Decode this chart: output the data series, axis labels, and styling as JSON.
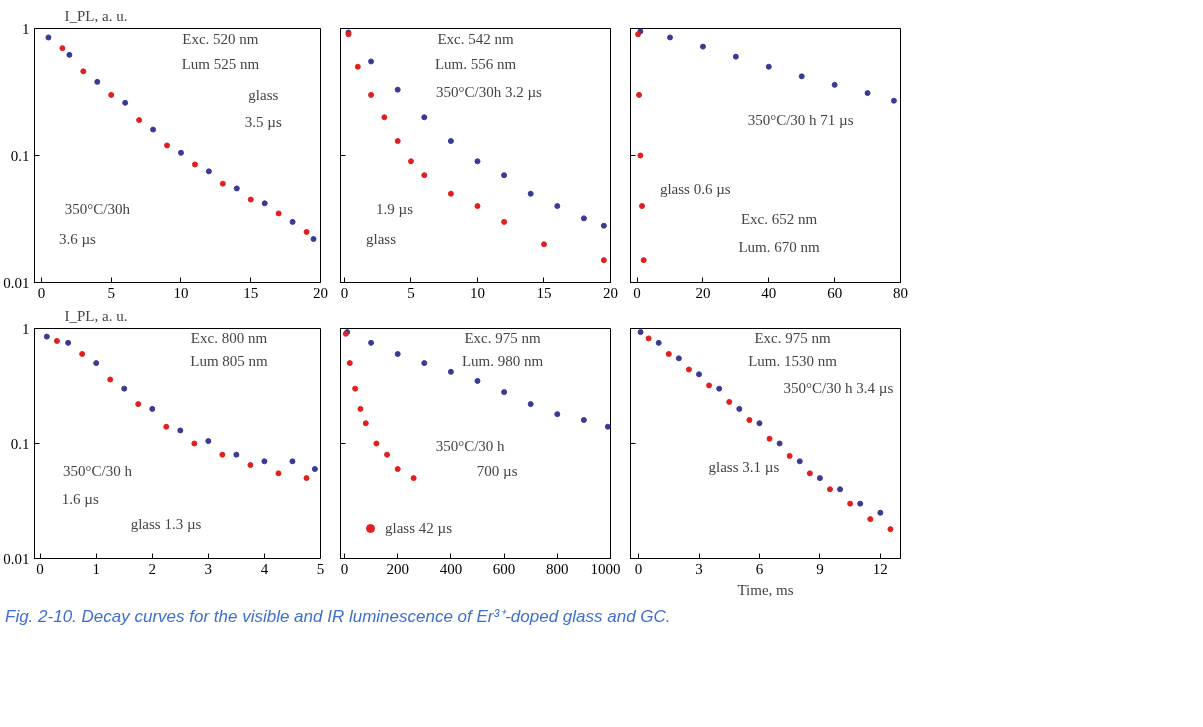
{
  "chart_data": [
    {
      "type": "scatter",
      "marker": "circle",
      "log": "y",
      "ylabel": "I_PL, a. u.",
      "xlim": [
        -0.5,
        20
      ],
      "xticks": [
        0,
        5,
        10,
        15,
        20
      ],
      "ylim": [
        0.01,
        1
      ],
      "yticks": [
        {
          "value": 0.01,
          "label": "0.01"
        },
        {
          "value": 0.1,
          "label": "0.1"
        },
        {
          "value": 1,
          "label": "1"
        }
      ],
      "series": [
        {
          "color": "#3a3a96",
          "x": [
            0.5,
            2,
            4,
            6,
            8,
            10,
            12,
            14,
            16,
            18,
            19.5
          ],
          "values": [
            0.85,
            0.62,
            0.38,
            0.26,
            0.16,
            0.105,
            0.075,
            0.055,
            0.042,
            0.03,
            0.022
          ]
        },
        {
          "color": "#e02020",
          "x": [
            1.5,
            3,
            5,
            7,
            9,
            11,
            13,
            15,
            17,
            19
          ],
          "values": [
            0.7,
            0.46,
            0.3,
            0.19,
            0.12,
            0.085,
            0.06,
            0.045,
            0.035,
            0.025
          ]
        }
      ],
      "annotations": [
        "Exc. 520 nm",
        "Lum 525 nm",
        "glass",
        "3.5 µs",
        "350°C/30h",
        "3.6 µs"
      ]
    },
    {
      "type": "scatter",
      "marker": "circle",
      "log": "y",
      "tick_labels": "x",
      "xlim": [
        -0.3,
        20
      ],
      "xticks": [
        0,
        5,
        10,
        15,
        20
      ],
      "ylim": [
        0.01,
        1
      ],
      "yticks": [
        {
          "value": 0.01,
          "label": null
        },
        {
          "value": 0.1,
          "label": null
        },
        {
          "value": 1,
          "label": null
        }
      ],
      "series": [
        {
          "color": "#3a3a96",
          "x": [
            0.3,
            2,
            4,
            6,
            8,
            10,
            12,
            14,
            16,
            18,
            19.5
          ],
          "values": [
            0.93,
            0.55,
            0.33,
            0.2,
            0.13,
            0.09,
            0.07,
            0.05,
            0.04,
            0.032,
            0.028
          ]
        },
        {
          "color": "#e02020",
          "x": [
            0.3,
            1,
            2,
            3,
            4,
            5,
            6,
            8,
            10,
            12,
            15,
            19.5
          ],
          "values": [
            0.9,
            0.5,
            0.3,
            0.2,
            0.13,
            0.09,
            0.07,
            0.05,
            0.04,
            0.03,
            0.02,
            0.015
          ]
        }
      ],
      "annotations": [
        "Exc. 542 nm",
        "Lum. 556 nm",
        "350°C/30h 3.2 µs",
        "1.9 µs",
        "glass"
      ]
    },
    {
      "type": "scatter",
      "marker": "circle",
      "log": "y",
      "tick_labels": "x",
      "xlim": [
        -2,
        80
      ],
      "xticks": [
        0,
        20,
        40,
        60,
        80
      ],
      "ylim": [
        0.01,
        1
      ],
      "yticks": [
        {
          "value": 0.01,
          "label": null
        },
        {
          "value": 0.1,
          "label": null
        },
        {
          "value": 1,
          "label": null
        }
      ],
      "series": [
        {
          "color": "#3a3a96",
          "x": [
            1,
            10,
            20,
            30,
            40,
            50,
            60,
            70,
            78
          ],
          "values": [
            0.95,
            0.85,
            0.72,
            0.6,
            0.5,
            0.42,
            0.36,
            0.31,
            0.27
          ]
        },
        {
          "color": "#e02020",
          "x": [
            0.3,
            0.6,
            1,
            1.5,
            2
          ],
          "values": [
            0.9,
            0.3,
            0.1,
            0.04,
            0.015
          ]
        }
      ],
      "annotations": [
        "350°C/30 h 71 µs",
        "glass 0.6 µs",
        "Exc. 652 nm",
        "Lum. 670 nm"
      ]
    },
    {
      "type": "scatter",
      "marker": "circle",
      "log": "y",
      "ylabel": "I_PL, a. u.",
      "xlim": [
        -0.1,
        5
      ],
      "xticks": [
        0,
        1,
        2,
        3,
        4,
        5
      ],
      "ylim": [
        0.01,
        1
      ],
      "yticks": [
        {
          "value": 0.01,
          "label": "0.01"
        },
        {
          "value": 0.1,
          "label": "0.1"
        },
        {
          "value": 1,
          "label": "1"
        }
      ],
      "series": [
        {
          "color": "#3a3a96",
          "x": [
            0.12,
            0.5,
            1,
            1.5,
            2,
            2.5,
            3,
            3.5,
            4,
            4.5,
            4.9
          ],
          "values": [
            0.85,
            0.75,
            0.5,
            0.3,
            0.2,
            0.13,
            0.105,
            0.08,
            0.07,
            0.07,
            0.06
          ]
        },
        {
          "color": "#e02020",
          "x": [
            0.3,
            0.75,
            1.25,
            1.75,
            2.25,
            2.75,
            3.25,
            3.75,
            4.25,
            4.75
          ],
          "values": [
            0.78,
            0.6,
            0.36,
            0.22,
            0.14,
            0.1,
            0.08,
            0.065,
            0.055,
            0.05
          ]
        }
      ],
      "annotations": [
        "Exc. 800 nm",
        "Lum 805 nm",
        "350°C/30 h",
        "1.6 µs",
        "glass 1.3 µs"
      ]
    },
    {
      "type": "scatter",
      "marker": "circle",
      "log": "y",
      "tick_labels": "x",
      "legend": "bottom left",
      "xlim": [
        -15,
        1000
      ],
      "xticks": [
        0,
        200,
        400,
        600,
        800,
        1000
      ],
      "ylim": [
        0.01,
        1
      ],
      "yticks": [
        {
          "value": 0.01,
          "label": null
        },
        {
          "value": 0.1,
          "label": null
        },
        {
          "value": 1,
          "label": null
        }
      ],
      "series": [
        {
          "color": "#3a3a96",
          "x": [
            10,
            100,
            200,
            300,
            400,
            500,
            600,
            700,
            800,
            900,
            990
          ],
          "values": [
            0.93,
            0.75,
            0.6,
            0.5,
            0.42,
            0.35,
            0.28,
            0.22,
            0.18,
            0.16,
            0.14
          ]
        },
        {
          "name": "glass 42 µs",
          "color": "#e02020",
          "x": [
            5,
            20,
            40,
            60,
            80,
            120,
            160,
            200,
            260
          ],
          "values": [
            0.9,
            0.5,
            0.3,
            0.2,
            0.15,
            0.1,
            0.08,
            0.06,
            0.05
          ]
        }
      ],
      "annotations": [
        "Exc. 975 nm",
        "Lum. 980 nm",
        "350°C/30 h",
        "700 µs"
      ]
    },
    {
      "type": "scatter",
      "marker": "circle",
      "log": "y",
      "tick_labels": "x",
      "xlabel": "Time, ms",
      "xlim": [
        -0.4,
        13
      ],
      "xticks": [
        0,
        3,
        6,
        9,
        12
      ],
      "ylim": [
        0.01,
        1
      ],
      "yticks": [
        {
          "value": 0.01,
          "label": null
        },
        {
          "value": 0.1,
          "label": null
        },
        {
          "value": 1,
          "label": null
        }
      ],
      "series": [
        {
          "color": "#3a3a96",
          "x": [
            0.1,
            1,
            2,
            3,
            4,
            5,
            6,
            7,
            8,
            9,
            10,
            11,
            12
          ],
          "values": [
            0.93,
            0.75,
            0.55,
            0.4,
            0.3,
            0.2,
            0.15,
            0.1,
            0.07,
            0.05,
            0.04,
            0.03,
            0.025
          ]
        },
        {
          "color": "#e02020",
          "x": [
            0.5,
            1.5,
            2.5,
            3.5,
            4.5,
            5.5,
            6.5,
            7.5,
            8.5,
            9.5,
            10.5,
            11.5,
            12.5
          ],
          "values": [
            0.82,
            0.6,
            0.44,
            0.32,
            0.23,
            0.16,
            0.11,
            0.078,
            0.055,
            0.04,
            0.03,
            0.022,
            0.018
          ]
        }
      ],
      "annotations": [
        "Exc. 975 nm",
        "Lum. 1530 nm",
        "350°C/30 h 3.4 µs",
        "glass 3.1 µs",
        "Fig. 2-10.  Decay curves for the visible and IR luminescence of Er³⁺-doped glass and GC."
      ]
    }
  ]
}
